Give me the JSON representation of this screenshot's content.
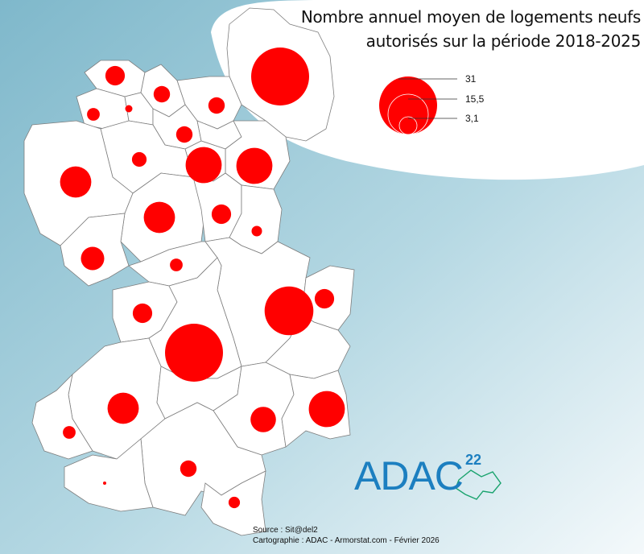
{
  "title_line1": "Nombre annuel moyen de logements neufs",
  "title_line2": "autorisés sur la période 2018-2025",
  "legend": {
    "values": [
      "31",
      "15,5",
      "3,1"
    ]
  },
  "source_line": "Source : Sit@del2",
  "credit_line": "Cartographie : ADAC - Armorstat.com - Février 2026",
  "logo": {
    "text": "ADAC",
    "number": "22"
  },
  "colors": {
    "bubble": "#ff0000",
    "background": "#8fc3d3",
    "logo": "#1c7fc0"
  },
  "map_data": {
    "bubbles": [
      {
        "id": "n-large",
        "value": 31
      },
      {
        "id": "center-south",
        "value": 31
      },
      {
        "id": "east-mid",
        "value": 22
      },
      {
        "id": "center-north-a",
        "value": 12
      },
      {
        "id": "center-north-b",
        "value": 12
      },
      {
        "id": "south-east",
        "value": 12
      },
      {
        "id": "west",
        "value": 9
      },
      {
        "id": "center",
        "value": 9
      },
      {
        "id": "south-west",
        "value": 9
      },
      {
        "id": "south-center",
        "value": 6
      },
      {
        "id": "west-lower",
        "value": 5
      },
      {
        "id": "mid-west",
        "value": 3.5
      },
      {
        "id": "east-small",
        "value": 3.5
      },
      {
        "id": "center-east",
        "value": 3.5
      },
      {
        "id": "north-west-a",
        "value": 3.5
      },
      {
        "id": "south",
        "value": 2.5
      },
      {
        "id": "north-a",
        "value": 2.5
      },
      {
        "id": "north-b",
        "value": 2.5
      },
      {
        "id": "center-north-c",
        "value": 2.5
      },
      {
        "id": "north-c",
        "value": 2
      },
      {
        "id": "center-mid",
        "value": 1.5
      },
      {
        "id": "north-west-b",
        "value": 1.5
      },
      {
        "id": "far-south",
        "value": 1.2
      },
      {
        "id": "south-west-small",
        "value": 1.5
      },
      {
        "id": "east-small-b",
        "value": 1
      },
      {
        "id": "far-south-west",
        "value": 0.1
      }
    ]
  }
}
